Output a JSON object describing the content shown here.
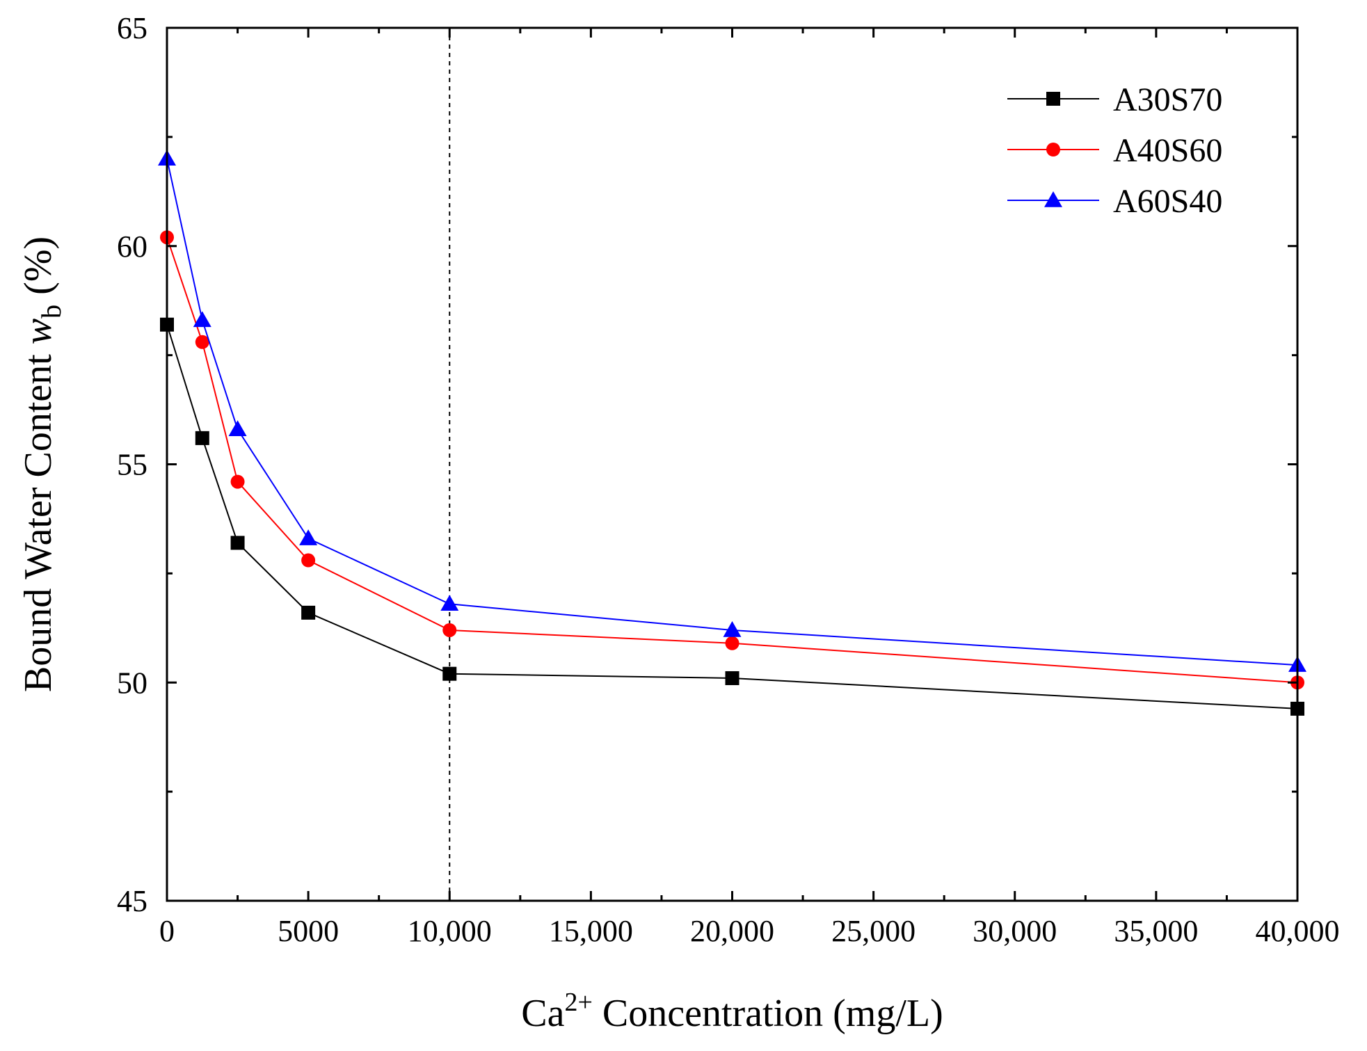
{
  "chart_data": {
    "type": "line",
    "title": "",
    "xlabel": {
      "prefix": "Ca",
      "superscript": "2+",
      "suffix": " Concentration (mg/L)"
    },
    "ylabel": {
      "prefix": "Bound Water Content ",
      "var": "w",
      "subscript": "b",
      "suffix": " (%)"
    },
    "xlim": [
      0,
      40000
    ],
    "ylim": [
      45,
      65
    ],
    "xticks": [
      {
        "value": 0,
        "label": "0"
      },
      {
        "value": 5000,
        "label": "5000"
      },
      {
        "value": 10000,
        "label": "10,000"
      },
      {
        "value": 15000,
        "label": "15,000"
      },
      {
        "value": 20000,
        "label": "20,000"
      },
      {
        "value": 25000,
        "label": "25,000"
      },
      {
        "value": 30000,
        "label": "30,000"
      },
      {
        "value": 35000,
        "label": "35,000"
      },
      {
        "value": 40000,
        "label": "40,000"
      }
    ],
    "yticks": [
      {
        "value": 45,
        "label": "45"
      },
      {
        "value": 50,
        "label": "50"
      },
      {
        "value": 55,
        "label": "55"
      },
      {
        "value": 60,
        "label": "60"
      },
      {
        "value": 65,
        "label": "65"
      }
    ],
    "reference_line_x": 10000,
    "x": [
      0,
      1250,
      2500,
      5000,
      10000,
      20000,
      40000
    ],
    "series": [
      {
        "name": "A30S70",
        "color": "#000000",
        "marker": "square",
        "values": [
          58.2,
          55.6,
          53.2,
          51.6,
          50.2,
          50.1,
          49.4
        ]
      },
      {
        "name": "A40S60",
        "color": "#ff0000",
        "marker": "circle",
        "values": [
          60.2,
          57.8,
          54.6,
          52.8,
          51.2,
          50.9,
          50.0
        ]
      },
      {
        "name": "A60S40",
        "color": "#0000ff",
        "marker": "triangle",
        "values": [
          62.0,
          58.3,
          55.8,
          53.3,
          51.8,
          51.2,
          50.4
        ]
      }
    ],
    "legend": "top-right"
  }
}
